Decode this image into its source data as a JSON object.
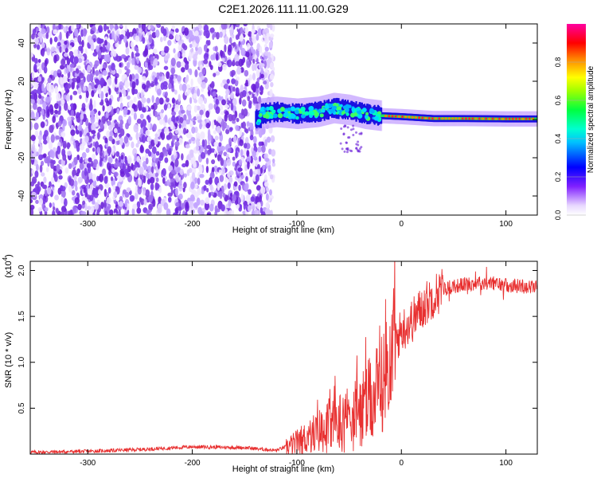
{
  "title": "C2E1.2026.111.11.00.G29",
  "chart_data": [
    {
      "type": "heatmap",
      "xlabel": "Height of straight line (km)",
      "ylabel": "Frequency (Hz)",
      "xlim": [
        -355,
        130
      ],
      "ylim": [
        -50,
        50
      ],
      "xticks": [
        "-300",
        "-200",
        "-100",
        "0",
        "100"
      ],
      "yticks": [
        "-40",
        "-20",
        "0",
        "20",
        "40"
      ],
      "colorbar": {
        "label": "Normalized spectral amplitude",
        "range": [
          0,
          1
        ],
        "ticks": [
          "0.0",
          "0.2",
          "0.4",
          "0.6",
          "0.8"
        ]
      },
      "description_values": {
        "noise_region_x": [
          -355,
          -130
        ],
        "signal_track_x": [
          -140,
          130
        ],
        "signal_center_freq_hz": [
          {
            "x": -135,
            "y": 3
          },
          {
            "x": -120,
            "y": 4
          },
          {
            "x": -100,
            "y": 3
          },
          {
            "x": -80,
            "y": 4
          },
          {
            "x": -65,
            "y": 6
          },
          {
            "x": -50,
            "y": 5
          },
          {
            "x": -35,
            "y": 3
          },
          {
            "x": -20,
            "y": 2
          },
          {
            "x": 0,
            "y": 1.5
          },
          {
            "x": 30,
            "y": 0.5
          },
          {
            "x": 60,
            "y": 0.5
          },
          {
            "x": 100,
            "y": 0.3
          },
          {
            "x": 130,
            "y": 0.3
          }
        ]
      }
    },
    {
      "type": "line",
      "xlabel": "Height of straight line (km)",
      "ylabel": "SNR (10 * v/v)",
      "multiplier": "(x10",
      "multiplier_exp": "4",
      "multiplier_close": ")",
      "xlim": [
        -355,
        130
      ],
      "ylim": [
        0,
        2.1
      ],
      "xticks": [
        "-300",
        "-200",
        "-100",
        "0",
        "100"
      ],
      "yticks": [
        "0.5",
        "1.0",
        "1.5",
        "2.0"
      ],
      "color": "#e83030",
      "envelope": [
        {
          "x": -355,
          "y": 0.02
        },
        {
          "x": -300,
          "y": 0.03
        },
        {
          "x": -250,
          "y": 0.05
        },
        {
          "x": -200,
          "y": 0.08
        },
        {
          "x": -150,
          "y": 0.07
        },
        {
          "x": -120,
          "y": 0.04
        },
        {
          "x": -100,
          "y": 0.12
        },
        {
          "x": -80,
          "y": 0.25
        },
        {
          "x": -60,
          "y": 0.35
        },
        {
          "x": -40,
          "y": 0.45
        },
        {
          "x": -20,
          "y": 0.7
        },
        {
          "x": -10,
          "y": 1.1
        },
        {
          "x": 0,
          "y": 1.35
        },
        {
          "x": 10,
          "y": 1.45
        },
        {
          "x": 20,
          "y": 1.6
        },
        {
          "x": 30,
          "y": 1.72
        },
        {
          "x": 40,
          "y": 1.8
        },
        {
          "x": 60,
          "y": 1.85
        },
        {
          "x": 80,
          "y": 1.87
        },
        {
          "x": 100,
          "y": 1.84
        },
        {
          "x": 130,
          "y": 1.82
        }
      ]
    }
  ]
}
